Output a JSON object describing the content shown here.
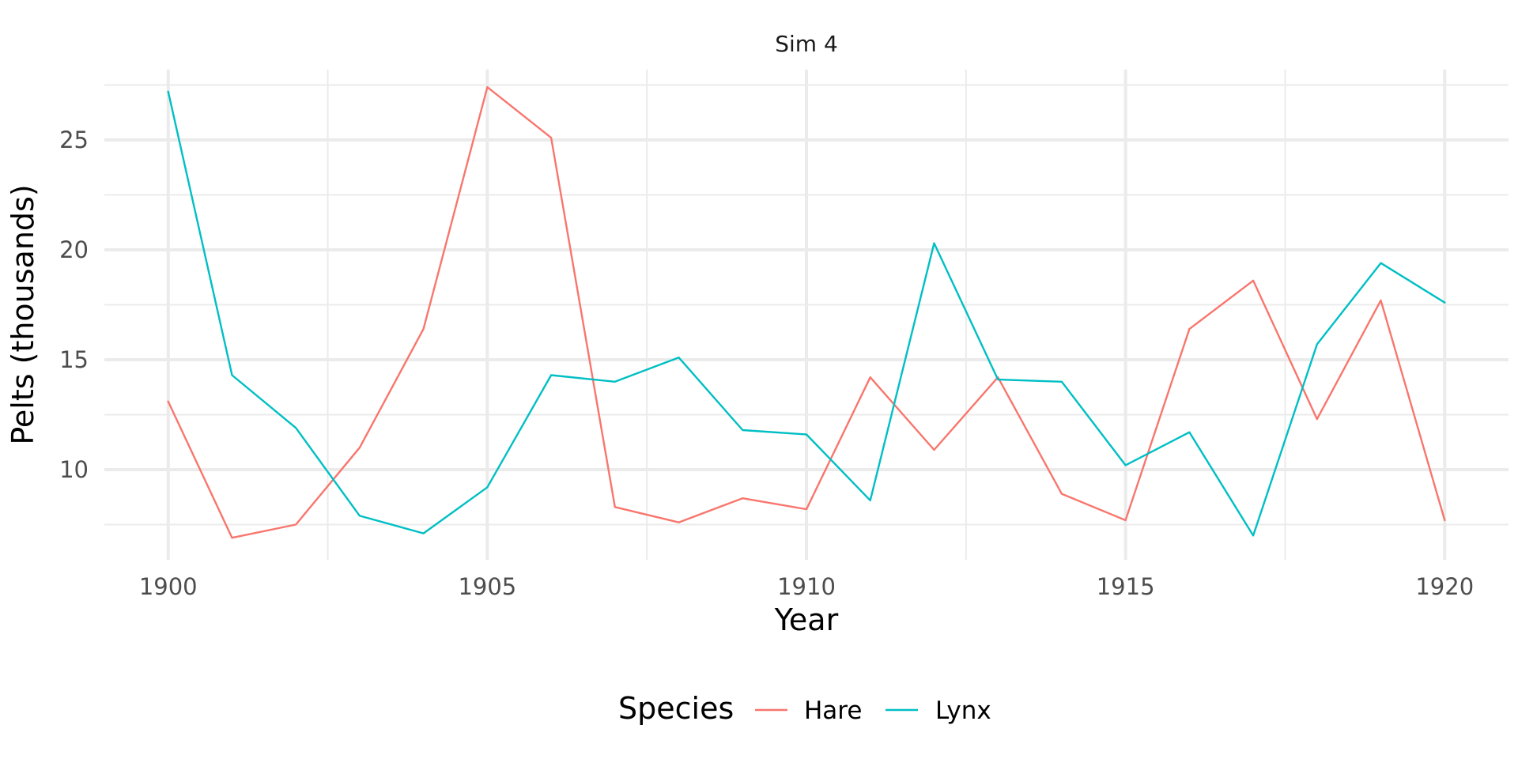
{
  "chart_data": {
    "type": "line",
    "title": "Sim 4",
    "xlabel": "Year",
    "ylabel": "Pelts (thousands)",
    "x": [
      1900,
      1901,
      1902,
      1903,
      1904,
      1905,
      1906,
      1907,
      1908,
      1909,
      1910,
      1911,
      1912,
      1913,
      1914,
      1915,
      1916,
      1917,
      1918,
      1919,
      1920
    ],
    "xlim": [
      1899,
      1921
    ],
    "ylim": [
      5.9,
      28.2
    ],
    "x_ticks": [
      1900,
      1905,
      1910,
      1915,
      1920
    ],
    "x_tick_labels": [
      "1900",
      "1905",
      "1910",
      "1915",
      "1920"
    ],
    "x_minor_ticks": [
      1902.5,
      1907.5,
      1912.5,
      1917.5
    ],
    "y_ticks": [
      10,
      15,
      20,
      25
    ],
    "y_tick_labels": [
      "10",
      "15",
      "20",
      "25"
    ],
    "y_minor_ticks": [
      7.5,
      12.5,
      17.5,
      22.5,
      27.5
    ],
    "grid": true,
    "legend_title": "Species",
    "legend_position": "bottom",
    "series": [
      {
        "name": "Hare",
        "color": "#F8766D",
        "values": [
          13.1,
          6.9,
          7.5,
          11.0,
          16.4,
          27.4,
          25.1,
          8.3,
          7.6,
          8.7,
          8.2,
          14.2,
          10.9,
          14.2,
          8.9,
          7.7,
          16.4,
          18.6,
          12.3,
          17.7,
          7.7
        ]
      },
      {
        "name": "Lynx",
        "color": "#00BFC4",
        "values": [
          27.2,
          14.3,
          11.9,
          7.9,
          7.1,
          9.2,
          14.3,
          14.0,
          15.1,
          11.8,
          11.6,
          8.6,
          20.3,
          14.1,
          14.0,
          10.2,
          11.7,
          7.0,
          15.7,
          19.4,
          17.6
        ]
      }
    ]
  }
}
